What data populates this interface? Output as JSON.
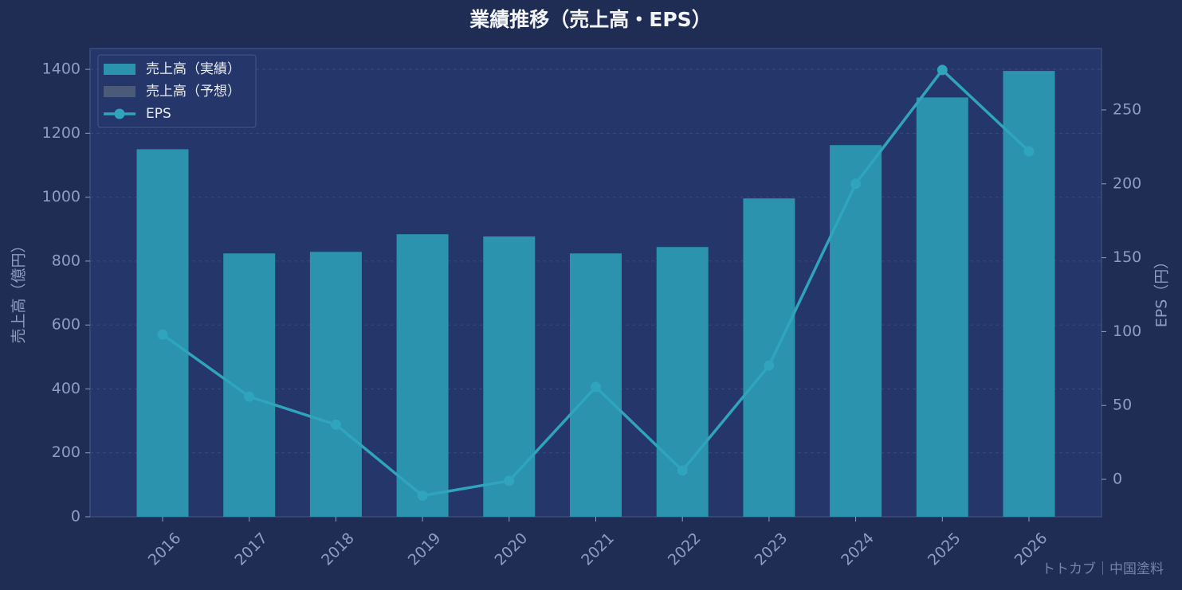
{
  "chart_data": {
    "type": "bar_line",
    "title": "業績推移（売上高・EPS）",
    "ylabel": "売上高（億円）",
    "y2label": "EPS（円）",
    "watermark": "トトカブ｜中国塗料",
    "categories": [
      "2016",
      "2017",
      "2018",
      "2019",
      "2020",
      "2021",
      "2022",
      "2023",
      "2024",
      "2025",
      "2026"
    ],
    "series": [
      {
        "name": "売上高（実績）",
        "type": "bar",
        "color": "#2b93ad",
        "values": [
          1150,
          824,
          829,
          884,
          877,
          824,
          844,
          996,
          1163,
          1312,
          1395
        ]
      },
      {
        "name": "売上高（予想）",
        "type": "bar",
        "color": "#4a5a78",
        "values": [
          null,
          null,
          null,
          null,
          null,
          null,
          null,
          null,
          null,
          null,
          null
        ]
      },
      {
        "name": "EPS",
        "type": "line",
        "axis": "y2",
        "color": "#2fa4bc",
        "values": [
          98,
          56,
          37,
          -11,
          -1,
          62.5,
          6,
          77,
          200,
          277,
          222
        ]
      }
    ],
    "ylim": [
      0,
      1465
    ],
    "yticks": [
      0,
      200,
      400,
      600,
      800,
      1000,
      1200,
      1400
    ],
    "y2lim": [
      -25.3,
      291.5
    ],
    "y2ticks": [
      0,
      50,
      100,
      150,
      200,
      250
    ],
    "grid": true,
    "legend": "upper left"
  }
}
